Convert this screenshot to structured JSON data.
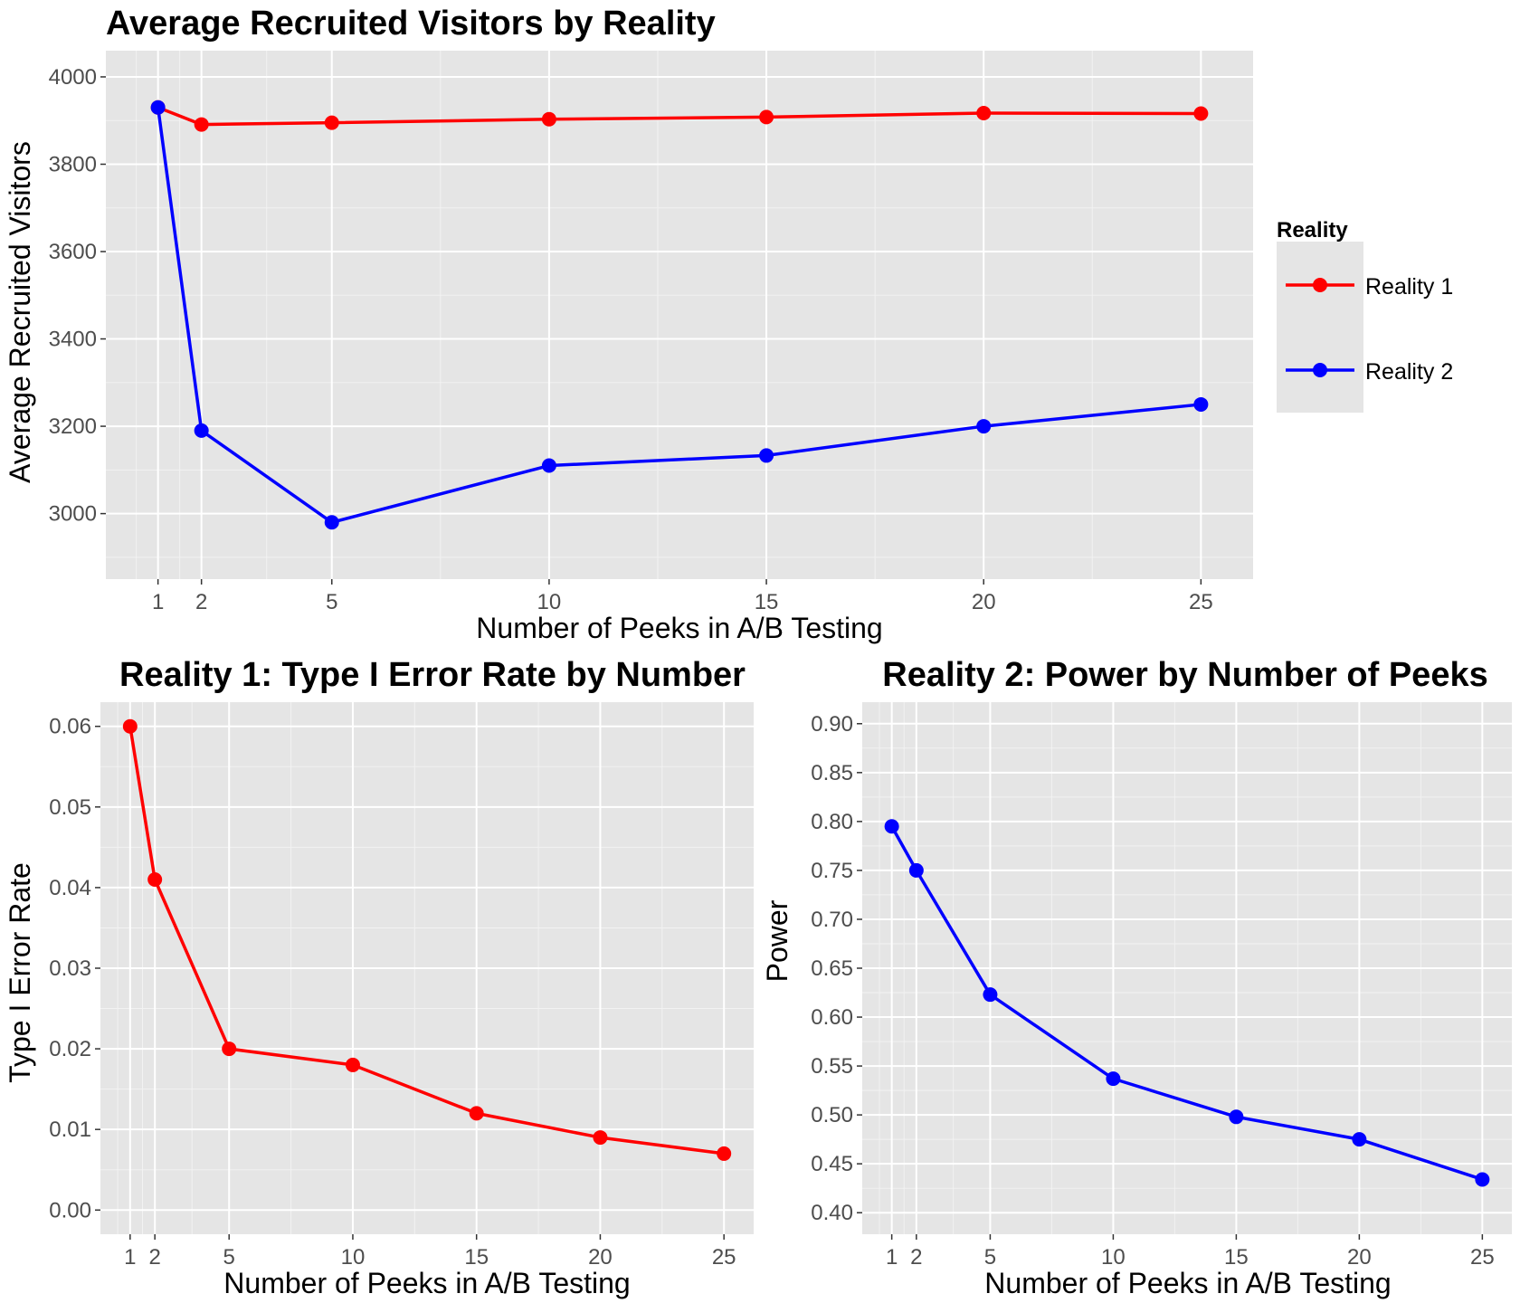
{
  "chart_data": [
    {
      "type": "line",
      "title": "Average Recruited Visitors by Reality",
      "xlabel": "Number of Peeks in A/B Testing",
      "ylabel": "Average Recruited Visitors",
      "x": [
        1,
        2,
        5,
        10,
        15,
        20,
        25
      ],
      "x_ticks": [
        1,
        2,
        5,
        10,
        15,
        20,
        25
      ],
      "xlim": [
        -0.2,
        26.2
      ],
      "y_ticks": [
        3000,
        3200,
        3400,
        3600,
        3800,
        4000
      ],
      "ylim": [
        2850,
        4060
      ],
      "grid": true,
      "legend": {
        "title": "Reality",
        "position": "right"
      },
      "series": [
        {
          "name": "Reality 1",
          "color": "#ff0000",
          "values": [
            3930,
            3891,
            3895,
            3903,
            3908,
            3917,
            3916
          ]
        },
        {
          "name": "Reality 2",
          "color": "#0000ff",
          "values": [
            3930,
            3190,
            2980,
            3110,
            3133,
            3200,
            3250
          ]
        }
      ]
    },
    {
      "type": "line",
      "title": "Reality 1: Type I Error Rate by Number",
      "xlabel": "Number of Peeks in A/B Testing",
      "ylabel": "Type I Error Rate",
      "x": [
        1,
        2,
        5,
        10,
        15,
        20,
        25
      ],
      "x_ticks": [
        1,
        2,
        5,
        10,
        15,
        20,
        25
      ],
      "xlim": [
        -0.2,
        26.2
      ],
      "y_ticks": [
        0.0,
        0.01,
        0.02,
        0.03,
        0.04,
        0.05,
        0.06
      ],
      "y_tick_labels": [
        "0.00",
        "0.01",
        "0.02",
        "0.03",
        "0.04",
        "0.05",
        "0.06"
      ],
      "ylim": [
        -0.003,
        0.063
      ],
      "grid": true,
      "series": [
        {
          "color": "#ff0000",
          "values": [
            0.06,
            0.041,
            0.02,
            0.018,
            0.012,
            0.009,
            0.007
          ]
        }
      ]
    },
    {
      "type": "line",
      "title": "Reality 2: Power by Number of Peeks",
      "xlabel": "Number of Peeks in A/B Testing",
      "ylabel": "Power",
      "x": [
        1,
        2,
        5,
        10,
        15,
        20,
        25
      ],
      "x_ticks": [
        1,
        2,
        5,
        10,
        15,
        20,
        25
      ],
      "xlim": [
        -0.2,
        26.2
      ],
      "y_ticks": [
        0.4,
        0.45,
        0.5,
        0.55,
        0.6,
        0.65,
        0.7,
        0.75,
        0.8,
        0.85,
        0.9
      ],
      "y_tick_labels": [
        "0.40",
        "0.45",
        "0.50",
        "0.55",
        "0.60",
        "0.65",
        "0.70",
        "0.75",
        "0.80",
        "0.85",
        "0.90"
      ],
      "ylim": [
        0.378,
        0.922
      ],
      "grid": true,
      "series": [
        {
          "color": "#0000ff",
          "values": [
            0.795,
            0.75,
            0.623,
            0.537,
            0.498,
            0.475,
            0.434
          ]
        }
      ]
    }
  ]
}
